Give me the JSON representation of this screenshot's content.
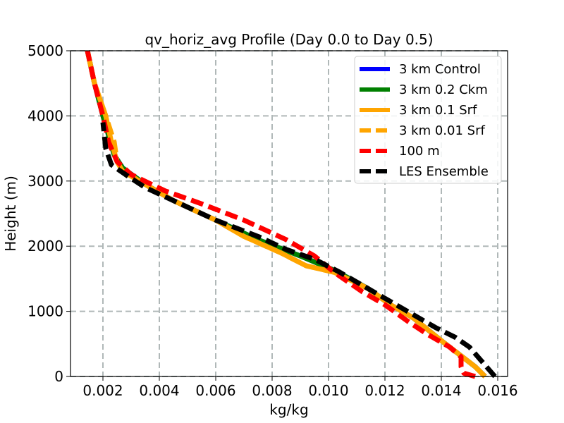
{
  "chart_data": {
    "type": "line",
    "title": "qv_horiz_avg Profile (Day 0.0 to Day 0.5)",
    "xlabel": "kg/kg",
    "ylabel": "Height (m)",
    "xlim": [
      0.00085,
      0.01635
    ],
    "ylim": [
      0,
      5000
    ],
    "xticks": [
      0.002,
      0.004,
      0.006,
      0.008,
      0.01,
      0.012,
      0.014,
      0.016
    ],
    "xtick_labels": [
      "0.002",
      "0.004",
      "0.006",
      "0.008",
      "0.010",
      "0.012",
      "0.014",
      "0.016"
    ],
    "yticks": [
      0,
      1000,
      2000,
      3000,
      4000,
      5000
    ],
    "ytick_labels": [
      "0",
      "1000",
      "2000",
      "3000",
      "4000",
      "5000"
    ],
    "grid": true,
    "legend_position": "top-right",
    "series": [
      {
        "name": "3 km Control",
        "color": "#0000ff",
        "style": "solid",
        "points": [
          [
            0.01555,
            0
          ],
          [
            0.0152,
            150
          ],
          [
            0.014,
            550
          ],
          [
            0.013,
            900
          ],
          [
            0.0122,
            1100
          ],
          [
            0.0114,
            1350
          ],
          [
            0.0102,
            1630
          ],
          [
            0.009,
            1850
          ],
          [
            0.0075,
            2100
          ],
          [
            0.006,
            2400
          ],
          [
            0.0045,
            2700
          ],
          [
            0.0035,
            2950
          ],
          [
            0.0027,
            3200
          ],
          [
            0.0024,
            3400
          ],
          [
            0.0022,
            3700
          ],
          [
            0.002,
            4000
          ],
          [
            0.0017,
            4500
          ],
          [
            0.00145,
            5000
          ]
        ]
      },
      {
        "name": "3 km 0.2 Ckm",
        "color": "#008000",
        "style": "solid",
        "points": [
          [
            0.01555,
            0
          ],
          [
            0.0152,
            150
          ],
          [
            0.014,
            550
          ],
          [
            0.013,
            900
          ],
          [
            0.0122,
            1100
          ],
          [
            0.0114,
            1350
          ],
          [
            0.0102,
            1630
          ],
          [
            0.009,
            1850
          ],
          [
            0.0075,
            2100
          ],
          [
            0.006,
            2400
          ],
          [
            0.0045,
            2700
          ],
          [
            0.0035,
            2950
          ],
          [
            0.0027,
            3200
          ],
          [
            0.0024,
            3400
          ],
          [
            0.0022,
            3700
          ],
          [
            0.002,
            4000
          ],
          [
            0.0017,
            4500
          ],
          [
            0.00145,
            5000
          ]
        ]
      },
      {
        "name": "3 km 0.1 Srf",
        "color": "#ffa500",
        "style": "solid",
        "points": [
          [
            0.01555,
            0
          ],
          [
            0.0152,
            150
          ],
          [
            0.014,
            550
          ],
          [
            0.013,
            900
          ],
          [
            0.0122,
            1100
          ],
          [
            0.0114,
            1350
          ],
          [
            0.0102,
            1600
          ],
          [
            0.0092,
            1700
          ],
          [
            0.0083,
            1900
          ],
          [
            0.007,
            2150
          ],
          [
            0.006,
            2400
          ],
          [
            0.0045,
            2700
          ],
          [
            0.0035,
            2950
          ],
          [
            0.0027,
            3150
          ],
          [
            0.0025,
            3300
          ],
          [
            0.0023,
            3600
          ],
          [
            0.0021,
            4000
          ],
          [
            0.0017,
            4500
          ],
          [
            0.00145,
            5000
          ]
        ]
      },
      {
        "name": "3 km 0.01 Srf",
        "color": "#ffa500",
        "style": "dashed",
        "points": [
          [
            0.01555,
            0
          ],
          [
            0.0152,
            150
          ],
          [
            0.014,
            550
          ],
          [
            0.013,
            900
          ],
          [
            0.0122,
            1100
          ],
          [
            0.0114,
            1350
          ],
          [
            0.0102,
            1600
          ],
          [
            0.0092,
            1700
          ],
          [
            0.0083,
            1900
          ],
          [
            0.007,
            2150
          ],
          [
            0.006,
            2400
          ],
          [
            0.0045,
            2700
          ],
          [
            0.0035,
            2950
          ],
          [
            0.0027,
            3150
          ],
          [
            0.0025,
            3300
          ],
          [
            0.0024,
            3600
          ],
          [
            0.0021,
            4000
          ],
          [
            0.0017,
            4500
          ],
          [
            0.00145,
            5000
          ]
        ]
      },
      {
        "name": "100 m",
        "color": "#ff0000",
        "style": "dashed",
        "points": [
          [
            0.0152,
            0
          ],
          [
            0.0148,
            50
          ],
          [
            0.0147,
            150
          ],
          [
            0.0147,
            300
          ],
          [
            0.0143,
            450
          ],
          [
            0.0135,
            650
          ],
          [
            0.0128,
            850
          ],
          [
            0.012,
            1100
          ],
          [
            0.0112,
            1300
          ],
          [
            0.0102,
            1600
          ],
          [
            0.0095,
            1850
          ],
          [
            0.0085,
            2100
          ],
          [
            0.007,
            2400
          ],
          [
            0.0055,
            2650
          ],
          [
            0.0042,
            2850
          ],
          [
            0.003,
            3100
          ],
          [
            0.0025,
            3300
          ],
          [
            0.0022,
            3600
          ],
          [
            0.002,
            4000
          ],
          [
            0.0017,
            4500
          ],
          [
            0.00145,
            5000
          ]
        ]
      },
      {
        "name": "LES Ensemble",
        "color": "#000000",
        "style": "dashed",
        "points": [
          [
            0.0159,
            0
          ],
          [
            0.0157,
            100
          ],
          [
            0.0154,
            250
          ],
          [
            0.015,
            450
          ],
          [
            0.0145,
            600
          ],
          [
            0.0138,
            750
          ],
          [
            0.0128,
            1000
          ],
          [
            0.012,
            1200
          ],
          [
            0.0112,
            1400
          ],
          [
            0.0104,
            1600
          ],
          [
            0.0095,
            1800
          ],
          [
            0.0085,
            1950
          ],
          [
            0.0075,
            2150
          ],
          [
            0.006,
            2400
          ],
          [
            0.0045,
            2700
          ],
          [
            0.0035,
            2900
          ],
          [
            0.0028,
            3100
          ],
          [
            0.0023,
            3250
          ],
          [
            0.0021,
            3500
          ],
          [
            0.002,
            3900
          ]
        ]
      }
    ]
  }
}
